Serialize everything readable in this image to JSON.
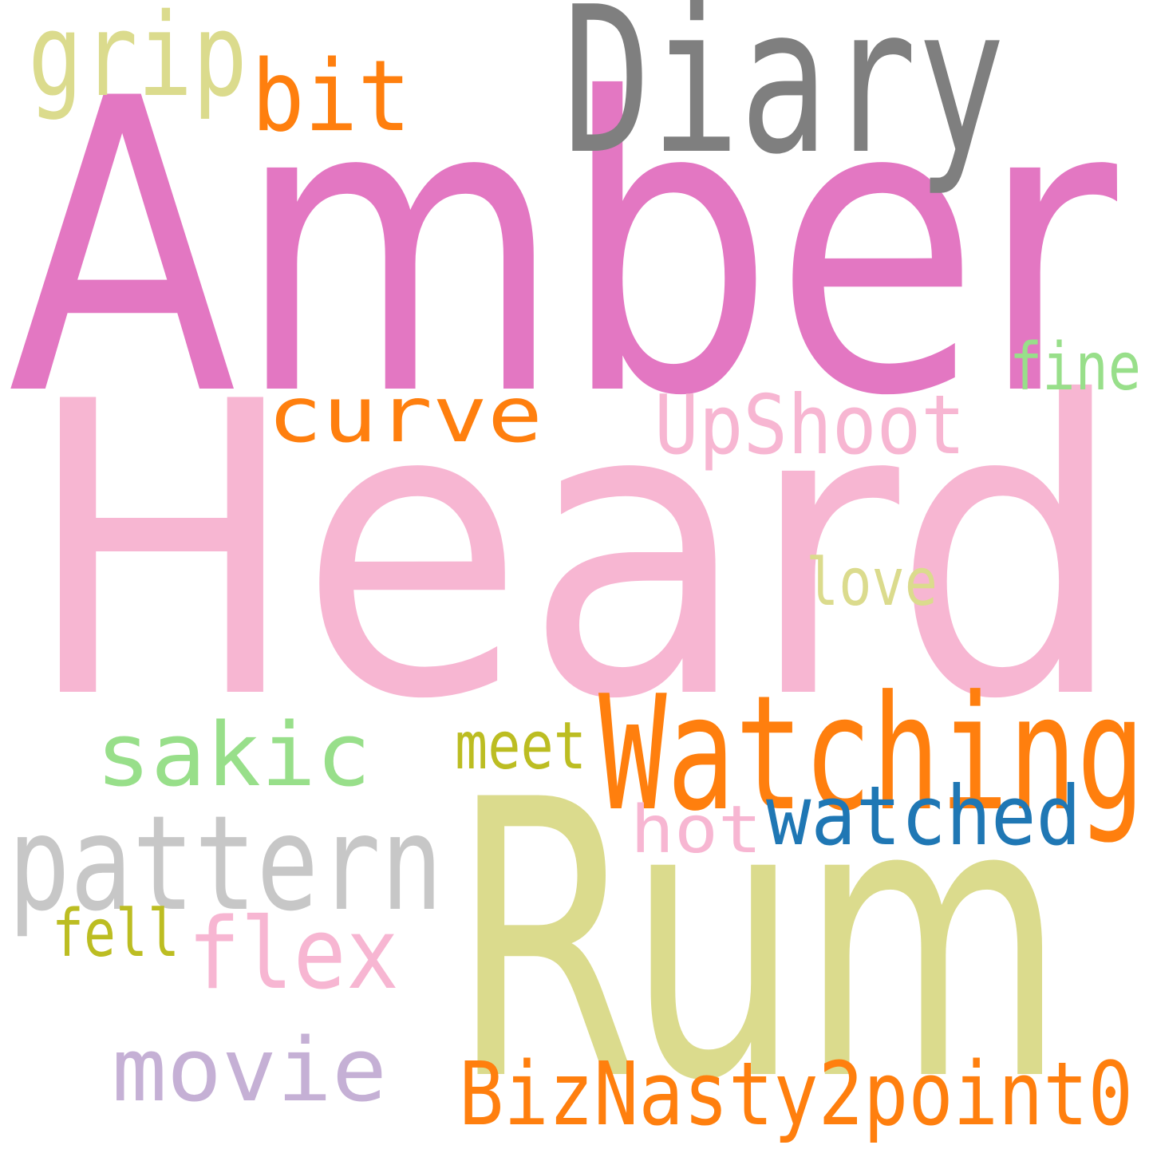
{
  "cloud": {
    "words": {
      "amber": {
        "text": "Amber",
        "color": "#e377c2"
      },
      "heard": {
        "text": "Heard",
        "color": "#f7b6d2"
      },
      "rum": {
        "text": "Rum",
        "color": "#dbdb8d"
      },
      "diary": {
        "text": "Diary",
        "color": "#7f7f7f"
      },
      "watching": {
        "text": "Watching",
        "color": "#ff7f0e"
      },
      "pattern": {
        "text": "pattern",
        "color": "#c7c7c7"
      },
      "watched": {
        "text": "watched",
        "color": "#1f77b4"
      },
      "biznasty": {
        "text": "BizNasty2point0",
        "color": "#ff7f0e"
      },
      "upshoot": {
        "text": "UpShoot",
        "color": "#f7b6d2"
      },
      "curve": {
        "text": "curve",
        "color": "#ff7f0e"
      },
      "sakic": {
        "text": "sakic",
        "color": "#98df8a"
      },
      "movie": {
        "text": "movie",
        "color": "#c5b0d5"
      },
      "flex": {
        "text": "flex",
        "color": "#f7b6d2"
      },
      "bit": {
        "text": "bit",
        "color": "#ff7f0e"
      },
      "grip": {
        "text": "grip",
        "color": "#dbdb8d"
      },
      "hot": {
        "text": "hot",
        "color": "#f7b6d2"
      },
      "love": {
        "text": "love",
        "color": "#dbdb8d"
      },
      "fine": {
        "text": "fine",
        "color": "#98df8a"
      },
      "meet": {
        "text": "meet",
        "color": "#bcbd22"
      },
      "fell": {
        "text": "fell",
        "color": "#bcbd22"
      }
    }
  }
}
